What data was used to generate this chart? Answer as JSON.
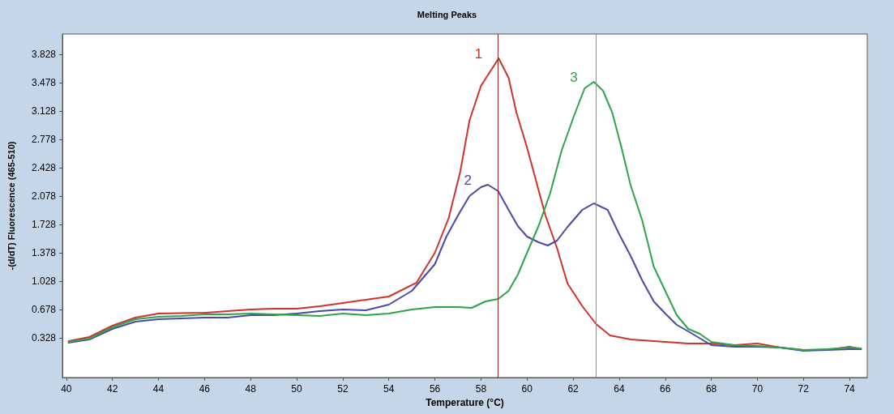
{
  "chart_data": {
    "type": "line",
    "title": "Melting Peaks",
    "xlabel": "Temperature (°C)",
    "ylabel": "-(d/dT) Fluorescence (465-510)",
    "xlim": [
      39.83,
      74.77
    ],
    "xticks": [
      40,
      42,
      44,
      46,
      48,
      50,
      52,
      54,
      56,
      58,
      60,
      62,
      64,
      66,
      68,
      70,
      72,
      74
    ],
    "ylim": [
      -0.16,
      4.08
    ],
    "yticks": [
      0.328,
      0.678,
      1.028,
      1.378,
      1.728,
      2.078,
      2.428,
      2.778,
      3.128,
      3.478,
      3.828
    ],
    "grid": false,
    "legend": false,
    "marker": "none",
    "line_style": "solid",
    "ref_lines": [
      {
        "axis": "x",
        "value": 58.75,
        "color": "#8b2a2a"
      },
      {
        "axis": "x",
        "value": 63.0,
        "color": "#5fb35f"
      }
    ],
    "series": [
      {
        "name": "1",
        "color": "#d0312d",
        "x": [
          40.1,
          41,
          41.5,
          42,
          43,
          44,
          46,
          47,
          48,
          49,
          50,
          51,
          52,
          54,
          55.2,
          56,
          56.6,
          57.1,
          57.5,
          58,
          58.77,
          59.2,
          59.54,
          60,
          60.8,
          61.3,
          61.76,
          62.4,
          63,
          63.6,
          64.5,
          66,
          67,
          68,
          69,
          70,
          71,
          72,
          73,
          74,
          74.5
        ],
        "values": [
          0.29,
          0.34,
          0.41,
          0.48,
          0.58,
          0.63,
          0.64,
          0.66,
          0.68,
          0.69,
          0.69,
          0.72,
          0.76,
          0.84,
          1.01,
          1.38,
          1.81,
          2.38,
          3.01,
          3.44,
          3.78,
          3.54,
          3.11,
          2.68,
          1.84,
          1.44,
          1.0,
          0.72,
          0.5,
          0.36,
          0.31,
          0.28,
          0.26,
          0.26,
          0.24,
          0.26,
          0.21,
          0.18,
          0.18,
          0.22,
          0.19
        ]
      },
      {
        "name": "2",
        "color": "#4a48a8",
        "x": [
          40.1,
          41,
          42,
          43,
          44,
          45,
          46,
          47,
          48,
          49,
          50,
          51,
          52,
          53,
          54,
          55,
          56,
          56.5,
          57,
          57.5,
          58,
          58.3,
          58.75,
          59.2,
          59.6,
          60,
          60.5,
          60.9,
          61.3,
          61.76,
          62.4,
          62.9,
          63.5,
          64,
          64.5,
          65,
          65.5,
          66,
          66.5,
          67,
          68,
          69,
          70,
          71,
          72,
          73,
          74,
          74.5
        ],
        "values": [
          0.27,
          0.31,
          0.44,
          0.53,
          0.56,
          0.57,
          0.58,
          0.58,
          0.61,
          0.61,
          0.63,
          0.66,
          0.68,
          0.67,
          0.74,
          0.91,
          1.24,
          1.58,
          1.84,
          2.08,
          2.19,
          2.22,
          2.14,
          1.91,
          1.71,
          1.58,
          1.51,
          1.47,
          1.53,
          1.7,
          1.91,
          1.99,
          1.91,
          1.61,
          1.34,
          1.04,
          0.78,
          0.63,
          0.49,
          0.41,
          0.24,
          0.22,
          0.22,
          0.21,
          0.17,
          0.18,
          0.19,
          0.19
        ]
      },
      {
        "name": "3",
        "color": "#2ea44a",
        "x": [
          40.1,
          41,
          42,
          43,
          44,
          45,
          46,
          47,
          48,
          49,
          50,
          51,
          52,
          53,
          54,
          55,
          56,
          57,
          57.6,
          58.2,
          58.75,
          59.2,
          59.6,
          60,
          60.5,
          61,
          61.5,
          62,
          62.5,
          62.9,
          63.3,
          63.7,
          64.1,
          64.5,
          65,
          65.5,
          66,
          66.5,
          67,
          67.5,
          68,
          69,
          70,
          71,
          72,
          73,
          74,
          74.5
        ],
        "values": [
          0.28,
          0.32,
          0.46,
          0.56,
          0.59,
          0.6,
          0.62,
          0.62,
          0.63,
          0.62,
          0.61,
          0.6,
          0.63,
          0.61,
          0.63,
          0.68,
          0.71,
          0.71,
          0.7,
          0.78,
          0.81,
          0.91,
          1.11,
          1.38,
          1.71,
          2.11,
          2.64,
          3.04,
          3.41,
          3.49,
          3.38,
          3.11,
          2.68,
          2.21,
          1.78,
          1.21,
          0.91,
          0.61,
          0.44,
          0.38,
          0.28,
          0.24,
          0.23,
          0.21,
          0.18,
          0.19,
          0.21,
          0.2
        ]
      }
    ]
  }
}
